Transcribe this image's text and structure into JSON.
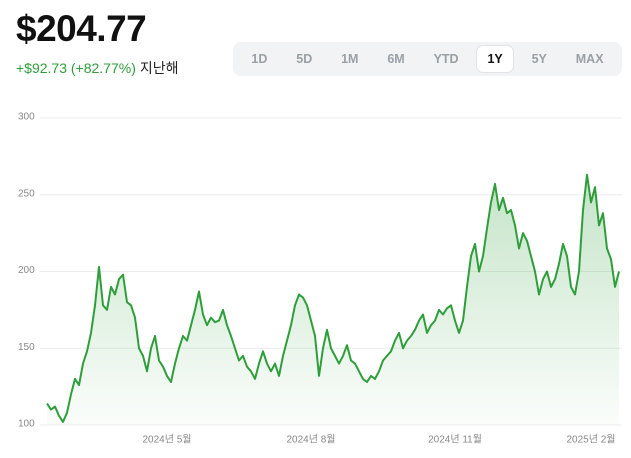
{
  "price": "$204.77",
  "change": "+$92.73 (+82.77%)",
  "period": "지난해",
  "range_buttons": [
    "1D",
    "5D",
    "1M",
    "6M",
    "YTD",
    "1Y",
    "5Y",
    "MAX"
  ],
  "selected_range": "1Y",
  "chart_data": {
    "type": "line",
    "color": "#2e9e3a",
    "categories": [
      null,
      null,
      null,
      null,
      null,
      null,
      null,
      null,
      null,
      null,
      null,
      null,
      null,
      null,
      null,
      null,
      null,
      null,
      null,
      null,
      null,
      null,
      null,
      null,
      null,
      null,
      null,
      null,
      null,
      null,
      "2024년 5월",
      null,
      null,
      null,
      null,
      null,
      null,
      null,
      null,
      null,
      null,
      null,
      null,
      null,
      null,
      null,
      null,
      null,
      null,
      null,
      null,
      null,
      null,
      null,
      null,
      null,
      null,
      null,
      null,
      null,
      null,
      null,
      null,
      null,
      null,
      null,
      "2024년 8월",
      null,
      null,
      null,
      null,
      null,
      null,
      null,
      null,
      null,
      null,
      null,
      null,
      null,
      null,
      null,
      null,
      null,
      null,
      null,
      null,
      null,
      null,
      null,
      null,
      null,
      null,
      null,
      null,
      null,
      null,
      null,
      null,
      null,
      null,
      null,
      "2024년 11월",
      null,
      null,
      null,
      null,
      null,
      null,
      null,
      null,
      null,
      null,
      null,
      null,
      null,
      null,
      null,
      null,
      null,
      null,
      null,
      null,
      null,
      null,
      null,
      null,
      null,
      null,
      null,
      null,
      null,
      null,
      null,
      null,
      null,
      "2025년 2월",
      null,
      null,
      null,
      null,
      null,
      null,
      null
    ],
    "values": [
      114,
      110,
      112,
      106,
      102,
      108,
      120,
      130,
      126,
      140,
      148,
      160,
      178,
      203,
      178,
      175,
      190,
      185,
      195,
      198,
      180,
      178,
      170,
      150,
      145,
      135,
      150,
      158,
      142,
      138,
      132,
      128,
      140,
      150,
      158,
      155,
      165,
      175,
      187,
      172,
      165,
      170,
      167,
      168,
      175,
      165,
      158,
      150,
      142,
      145,
      138,
      135,
      130,
      140,
      148,
      140,
      135,
      140,
      132,
      145,
      155,
      165,
      178,
      185,
      183,
      178,
      168,
      158,
      132,
      150,
      162,
      150,
      145,
      140,
      145,
      152,
      142,
      140,
      135,
      130,
      128,
      132,
      130,
      135,
      142,
      145,
      148,
      155,
      160,
      150,
      155,
      158,
      162,
      168,
      172,
      160,
      165,
      168,
      175,
      172,
      176,
      178,
      168,
      160,
      168,
      190,
      210,
      218,
      200,
      210,
      228,
      245,
      257,
      240,
      248,
      238,
      240,
      230,
      215,
      225,
      220,
      210,
      200,
      185,
      195,
      200,
      190,
      195,
      205,
      218,
      210,
      190,
      185,
      200,
      240,
      263,
      245,
      255,
      230,
      238,
      215,
      208,
      190,
      200
    ],
    "ylim": [
      100,
      300
    ],
    "yticks": [
      100,
      150,
      200,
      250,
      300
    ],
    "grid": true
  }
}
